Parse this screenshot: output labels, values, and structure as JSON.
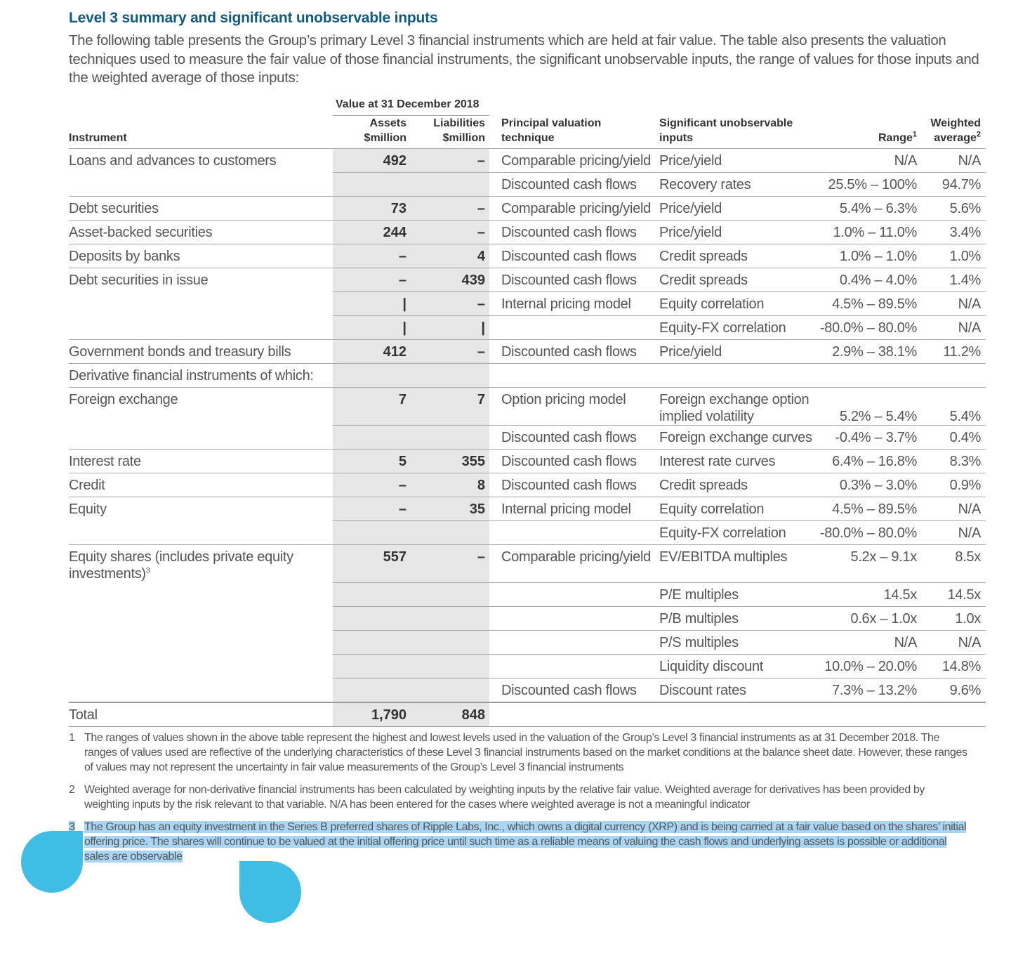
{
  "title": "Level 3 summary and significant unobservable inputs",
  "intro": "The following table presents the Group’s primary Level 3 financial instruments which are held at fair value. The table also presents the valuation techniques used to measure the fair value of those financial instruments, the significant unobservable inputs, the range of values for those inputs and the weighted average of those inputs:",
  "table": {
    "group_header": "Value at 31 December 2018",
    "columns": [
      {
        "lines": [
          "Instrument"
        ]
      },
      {
        "lines": [
          "Assets",
          "$million"
        ]
      },
      {
        "lines": [
          "Liabilities",
          "$million"
        ]
      },
      {
        "lines": [
          "Principal valuation",
          "technique"
        ]
      },
      {
        "lines": [
          "Significant unobservable",
          "inputs"
        ]
      },
      {
        "lines": [
          "Range"
        ],
        "note": "1"
      },
      {
        "lines": [
          "Weighted",
          "average"
        ],
        "note": "2"
      }
    ],
    "rows": [
      [
        "Loans and advances to customers",
        "492",
        "–",
        "Comparable pricing/yield",
        "Price/yield",
        "N/A",
        "N/A"
      ],
      [
        null,
        null,
        null,
        "Discounted cash flows",
        "Recovery rates",
        "25.5% – 100%",
        "94.7%"
      ],
      [
        "Debt securities",
        "73",
        "–",
        "Comparable pricing/yield",
        "Price/yield",
        "5.4% – 6.3%",
        "5.6%"
      ],
      [
        "Asset-backed securities",
        "244",
        "–",
        "Discounted cash flows",
        "Price/yield",
        "1.0% – 11.0%",
        "3.4%"
      ],
      [
        "Deposits by banks",
        "–",
        "4",
        "Discounted cash flows",
        "Credit spreads",
        "1.0% – 1.0%",
        "1.0%"
      ],
      [
        "Debt securities in issue",
        "–",
        "439",
        "Discounted cash flows",
        "Credit spreads",
        "0.4% – 4.0%",
        "1.4%"
      ],
      [
        null,
        "|",
        "–",
        "Internal pricing model",
        "Equity correlation",
        "4.5% – 89.5%",
        "N/A"
      ],
      [
        null,
        "|",
        "|",
        null,
        "Equity-FX correlation",
        "-80.0% – 80.0%",
        "N/A"
      ],
      [
        "Government bonds and treasury bills",
        "412",
        "–",
        "Discounted cash flows",
        "Price/yield",
        "2.9% – 38.1%",
        "11.2%"
      ],
      [
        "Derivative financial instruments of which:",
        null,
        null,
        null,
        null,
        null,
        null
      ],
      [
        "Foreign exchange",
        "7",
        "7",
        "Option pricing model",
        {
          "lines": [
            "Foreign exchange option",
            "implied volatility"
          ]
        },
        "5.2% – 5.4%",
        "5.4%"
      ],
      [
        null,
        null,
        null,
        "Discounted cash flows",
        "Foreign exchange curves",
        "-0.4% – 3.7%",
        "0.4%"
      ],
      [
        "Interest rate",
        "5",
        "355",
        "Discounted cash flows",
        "Interest rate curves",
        "6.4% – 16.8%",
        "8.3%"
      ],
      [
        "Credit",
        "–",
        "8",
        "Discounted cash flows",
        "Credit spreads",
        "0.3% – 3.0%",
        "0.9%"
      ],
      [
        "Equity",
        "–",
        "35",
        "Internal pricing model",
        "Equity correlation",
        "4.5% – 89.5%",
        "N/A"
      ],
      [
        null,
        null,
        null,
        null,
        "Equity-FX correlation",
        "-80.0% – 80.0%",
        "N/A"
      ],
      [
        {
          "lines": [
            "Equity shares (includes private equity",
            "investments)"
          ],
          "note": "3"
        },
        "557",
        "–",
        "Comparable pricing/yield",
        "EV/EBITDA multiples",
        "5.2x – 9.1x",
        "8.5x"
      ],
      [
        null,
        null,
        null,
        null,
        "P/E multiples",
        "14.5x",
        "14.5x"
      ],
      [
        null,
        null,
        null,
        null,
        "P/B multiples",
        "0.6x – 1.0x",
        "1.0x"
      ],
      [
        null,
        null,
        null,
        null,
        "P/S multiples",
        "N/A",
        "N/A"
      ],
      [
        null,
        null,
        null,
        null,
        "Liquidity discount",
        "10.0% – 20.0%",
        "14.8%"
      ],
      [
        null,
        null,
        null,
        "Discounted cash flows",
        "Discount rates",
        "7.3% – 13.2%",
        "9.6%"
      ]
    ],
    "total": [
      "Total",
      "1,790",
      "848"
    ]
  },
  "footnotes": [
    {
      "number": "1",
      "text": "The ranges of values shown in the above table represent the highest and lowest levels used in the valuation of the Group’s Level 3 financial instruments as at 31 December 2018. The ranges of values used are reflective of the underlying characteristics of these Level 3 financial instruments based on the market conditions at the balance sheet date. However, these ranges of values may not represent the uncertainty in fair value measurements of the Group’s Level 3 financial instruments"
    },
    {
      "number": "2",
      "text": "Weighted average for non-derivative financial instruments has been calculated by weighting inputs by the relative fair value. Weighted average for derivatives has been provided by weighting inputs by the risk relevant to that variable. N/A has been entered for the cases where weighted average is not a meaningful indicator"
    },
    {
      "number": "3",
      "text": "The Group has an equity investment in the Series B preferred shares of Ripple Labs, Inc., which owns a digital currency (XRP) and is being carried at a fair value based on the shares’ initial offering price. The shares will continue to be valued at the initial offering price until such time as a reliable means of valuing the cash flows and underlying assets is possible or additional sales are observable"
    }
  ]
}
